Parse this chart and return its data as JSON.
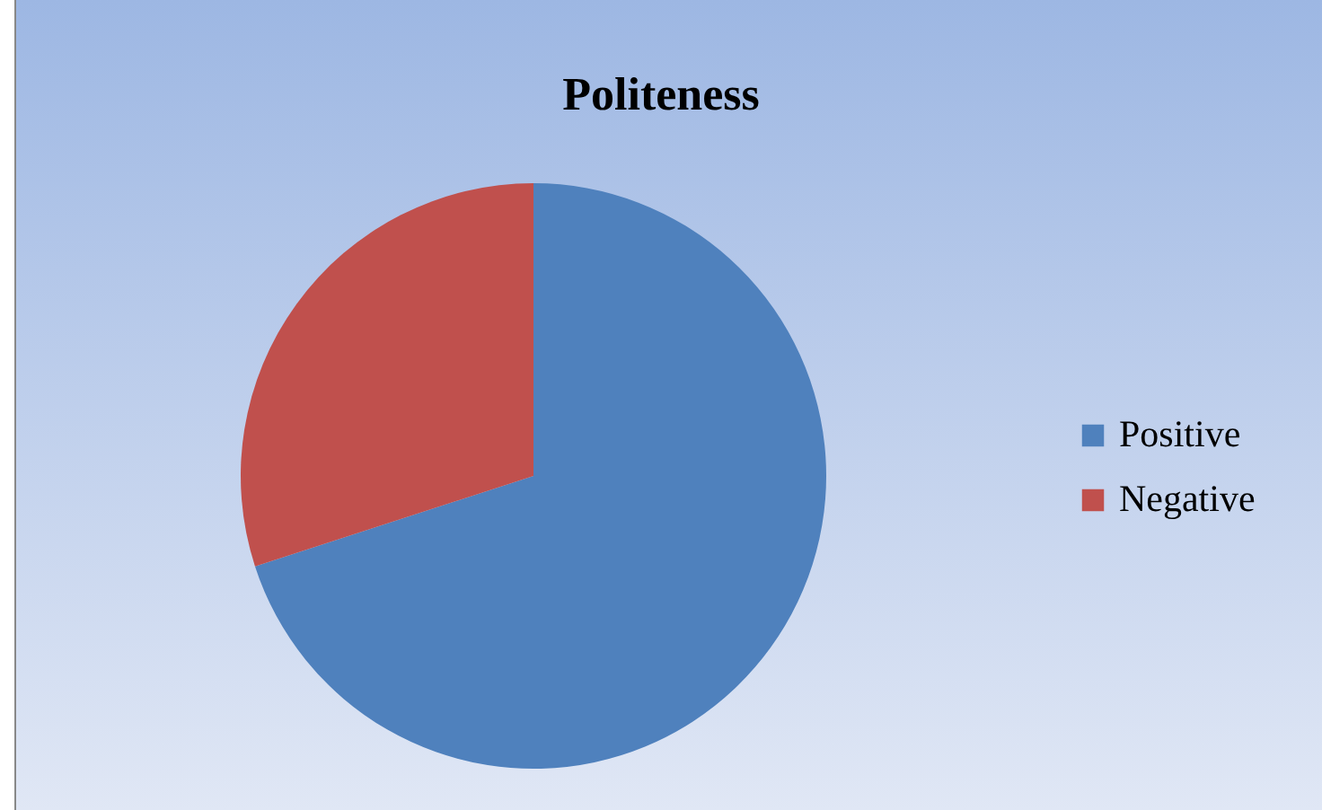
{
  "chart_data": {
    "type": "pie",
    "title": "Politeness",
    "categories": [
      "Positive",
      "Negative"
    ],
    "values": [
      70,
      30
    ],
    "colors": [
      "#4f81bd",
      "#c0504d"
    ],
    "legend": "right"
  }
}
